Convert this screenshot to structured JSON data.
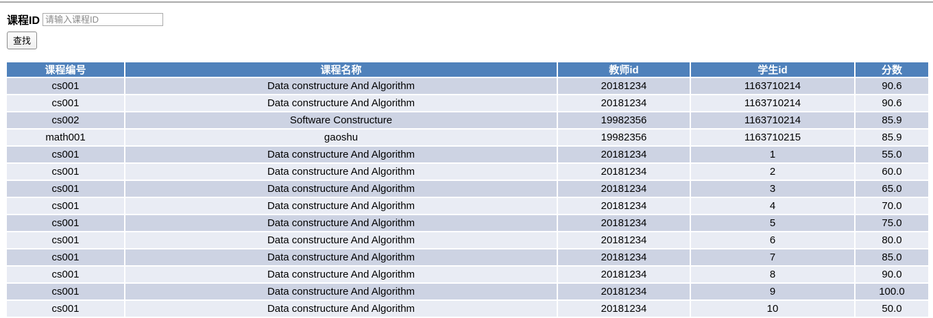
{
  "search": {
    "label": "课程ID",
    "placeholder": "请输入课程ID",
    "input_value": "",
    "button_label": "查找"
  },
  "table": {
    "headers": [
      "课程编号",
      "课程名称",
      "教师id",
      "学生id",
      "分数"
    ],
    "rows": [
      [
        "cs001",
        "Data constructure And Algorithm",
        "20181234",
        "1163710214",
        "90.6"
      ],
      [
        "cs001",
        "Data constructure And Algorithm",
        "20181234",
        "1163710214",
        "90.6"
      ],
      [
        "cs002",
        "Software Constructure",
        "19982356",
        "1163710214",
        "85.9"
      ],
      [
        "math001",
        "gaoshu",
        "19982356",
        "1163710215",
        "85.9"
      ],
      [
        "cs001",
        "Data constructure And Algorithm",
        "20181234",
        "1",
        "55.0"
      ],
      [
        "cs001",
        "Data constructure And Algorithm",
        "20181234",
        "2",
        "60.0"
      ],
      [
        "cs001",
        "Data constructure And Algorithm",
        "20181234",
        "3",
        "65.0"
      ],
      [
        "cs001",
        "Data constructure And Algorithm",
        "20181234",
        "4",
        "70.0"
      ],
      [
        "cs001",
        "Data constructure And Algorithm",
        "20181234",
        "5",
        "75.0"
      ],
      [
        "cs001",
        "Data constructure And Algorithm",
        "20181234",
        "6",
        "80.0"
      ],
      [
        "cs001",
        "Data constructure And Algorithm",
        "20181234",
        "7",
        "85.0"
      ],
      [
        "cs001",
        "Data constructure And Algorithm",
        "20181234",
        "8",
        "90.0"
      ],
      [
        "cs001",
        "Data constructure And Algorithm",
        "20181234",
        "9",
        "100.0"
      ],
      [
        "cs001",
        "Data constructure And Algorithm",
        "20181234",
        "10",
        "50.0"
      ]
    ]
  },
  "colors": {
    "header_bg": "#4f81bb",
    "header_text": "#ffffff",
    "row_odd_bg": "#cdd3e3",
    "row_even_bg": "#e9ecf4",
    "top_rule": "#a9a9a9"
  }
}
